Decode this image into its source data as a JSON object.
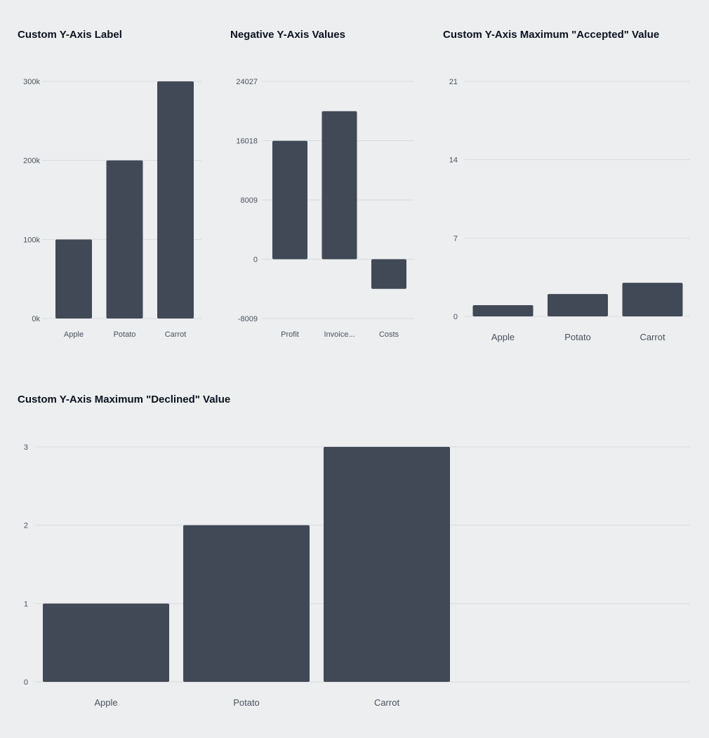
{
  "chart_data": [
    {
      "type": "bar",
      "title": "Custom Y-Axis Label",
      "categories": [
        "Apple",
        "Potato",
        "Carrot"
      ],
      "values": [
        100000,
        200000,
        300000
      ],
      "y_ticks": [
        0,
        100000,
        200000,
        300000
      ],
      "y_tick_labels": [
        "0k",
        "100k",
        "200k",
        "300k"
      ],
      "ylim": [
        0,
        300000
      ],
      "grid": true,
      "color": "#414856"
    },
    {
      "type": "bar",
      "title": "Negative Y-Axis Values",
      "categories": [
        "Profit",
        "Invoice...",
        "Costs"
      ],
      "values": [
        16000,
        20000,
        -4000
      ],
      "y_ticks": [
        -8009,
        0,
        8009,
        16018,
        24027
      ],
      "y_tick_labels": [
        "-8009",
        "0",
        "8009",
        "16018",
        "24027"
      ],
      "ylim": [
        -8009,
        24027
      ],
      "grid": true,
      "color": "#414856"
    },
    {
      "type": "bar",
      "title": "Custom Y-Axis Maximum \"Accepted\" Value",
      "categories": [
        "Apple",
        "Potato",
        "Carrot"
      ],
      "values": [
        1,
        2,
        3
      ],
      "y_ticks": [
        0,
        7,
        14,
        21
      ],
      "y_tick_labels": [
        "0",
        "7",
        "14",
        "21"
      ],
      "ylim": [
        0,
        21
      ],
      "grid": true,
      "color": "#414856"
    },
    {
      "type": "bar",
      "title": "Custom Y-Axis Maximum \"Declined\" Value",
      "categories": [
        "Apple",
        "Potato",
        "Carrot"
      ],
      "values": [
        1,
        2,
        3
      ],
      "y_ticks": [
        0,
        1,
        2,
        3
      ],
      "y_tick_labels": [
        "0",
        "1",
        "2",
        "3"
      ],
      "ylim": [
        0,
        3
      ],
      "grid": true,
      "color": "#414856"
    }
  ]
}
